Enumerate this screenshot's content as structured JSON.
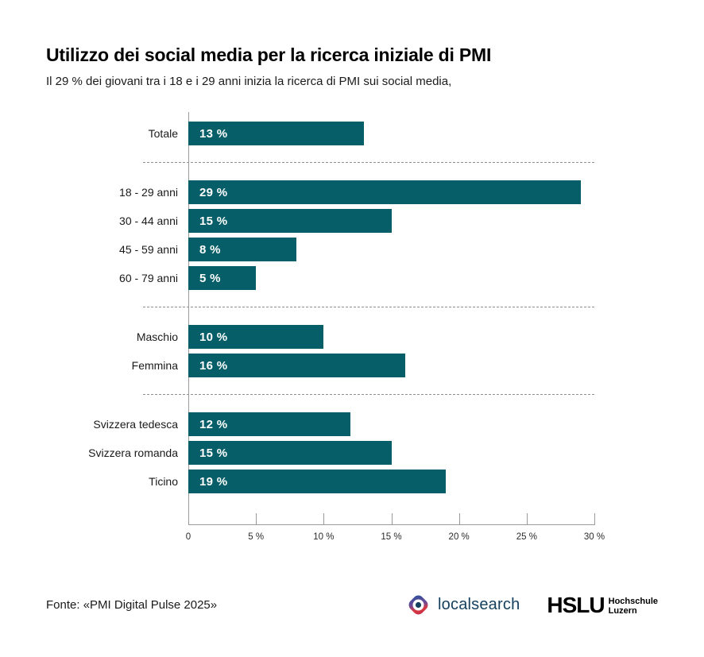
{
  "header": {
    "title": "Utilizzo dei social media per la ricerca iniziale di PMI",
    "subtitle": "Il 29 % dei giovani tra i 18 e i 29 anni inizia la ricerca di PMI sui social media,"
  },
  "colors": {
    "bar": "#065e69",
    "axis_line": "#9b9b9b",
    "separator": "#8f8f8f",
    "value_label": "#ffffff",
    "localsearch_navy": "#14405e",
    "localsearch_gradient_blue": "#2e4f9d",
    "localsearch_gradient_red": "#d93840"
  },
  "chart_data": {
    "type": "bar",
    "orientation": "horizontal",
    "value_unit": "%",
    "xlim": [
      0,
      30
    ],
    "x_ticks": [
      0,
      5,
      10,
      15,
      20,
      25,
      30
    ],
    "x_tick_labels": [
      "0",
      "5 %",
      "10 %",
      "15 %",
      "20 %",
      "25 %",
      "30 %"
    ],
    "legend": "none",
    "grid": "dashed separators between category groups",
    "groups": [
      {
        "name": "totale",
        "categories": [
          "Totale"
        ],
        "values": [
          13
        ],
        "value_labels": [
          "13 %"
        ]
      },
      {
        "name": "eta",
        "categories": [
          "18 - 29 anni",
          "30 - 44 anni",
          "45 - 59 anni",
          "60 - 79 anni"
        ],
        "values": [
          29,
          15,
          8,
          5
        ],
        "value_labels": [
          "29 %",
          "15 %",
          "8 %",
          "5 %"
        ]
      },
      {
        "name": "genere",
        "categories": [
          "Maschio",
          "Femmina"
        ],
        "values": [
          10,
          16
        ],
        "value_labels": [
          "10 %",
          "16 %"
        ]
      },
      {
        "name": "regione",
        "categories": [
          "Svizzera tedesca",
          "Svizzera romanda",
          "Ticino"
        ],
        "values": [
          12,
          15,
          19
        ],
        "value_labels": [
          "12 %",
          "15 %",
          "19 %"
        ]
      }
    ]
  },
  "footer": {
    "source": "Fonte: «PMI Digital Pulse 2025»",
    "localsearch": {
      "wordmark": "localsearch"
    },
    "hslu": {
      "acronym": "HSLU",
      "line1": "Hochschule",
      "line2": "Luzern"
    }
  }
}
